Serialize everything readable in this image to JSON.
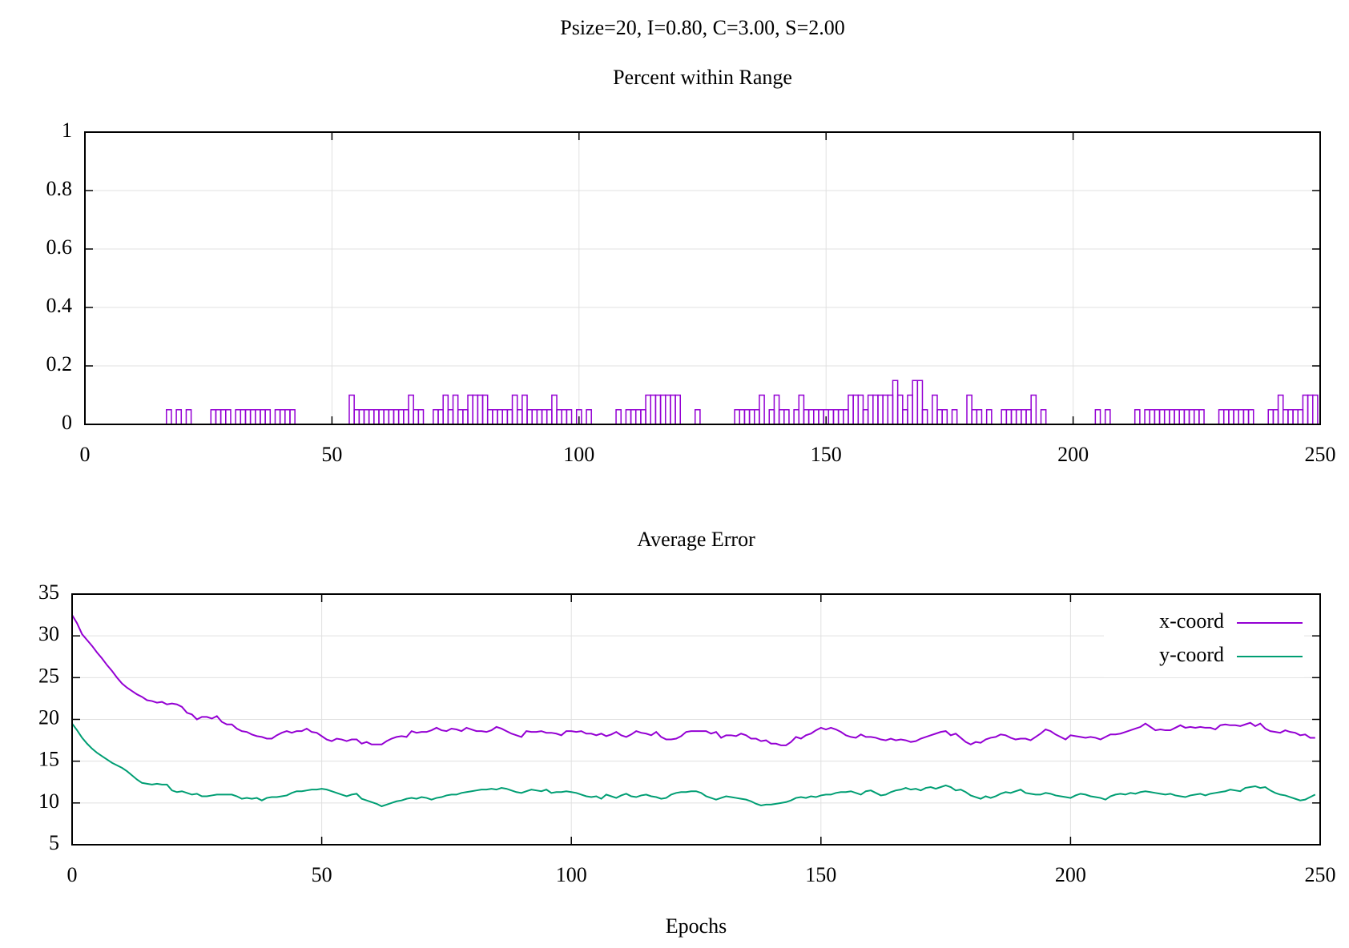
{
  "title": "Psize=20, I=0.80, C=3.00, S=2.00",
  "chart_data": [
    {
      "type": "bar",
      "title": "Percent within Range",
      "color": "#9400d3",
      "grid": true,
      "xlim": [
        0,
        250
      ],
      "xticks": [
        0,
        50,
        100,
        150,
        200,
        250
      ],
      "ylim": [
        0,
        1
      ],
      "yticks": [
        0,
        0.2,
        0.4,
        0.6,
        0.8,
        1
      ],
      "x": [
        0,
        1,
        2,
        3,
        4,
        5,
        6,
        7,
        8,
        9,
        10,
        11,
        12,
        13,
        14,
        15,
        16,
        17,
        18,
        19,
        20,
        21,
        22,
        23,
        24,
        25,
        26,
        27,
        28,
        29,
        30,
        31,
        32,
        33,
        34,
        35,
        36,
        37,
        38,
        39,
        40,
        41,
        42,
        43,
        44,
        45,
        46,
        47,
        48,
        49,
        50,
        51,
        52,
        53,
        54,
        55,
        56,
        57,
        58,
        59,
        60,
        61,
        62,
        63,
        64,
        65,
        66,
        67,
        68,
        69,
        70,
        71,
        72,
        73,
        74,
        75,
        76,
        77,
        78,
        79,
        80,
        81,
        82,
        83,
        84,
        85,
        86,
        87,
        88,
        89,
        90,
        91,
        92,
        93,
        94,
        95,
        96,
        97,
        98,
        99,
        100,
        101,
        102,
        103,
        104,
        105,
        106,
        107,
        108,
        109,
        110,
        111,
        112,
        113,
        114,
        115,
        116,
        117,
        118,
        119,
        120,
        121,
        122,
        123,
        124,
        125,
        126,
        127,
        128,
        129,
        130,
        131,
        132,
        133,
        134,
        135,
        136,
        137,
        138,
        139,
        140,
        141,
        142,
        143,
        144,
        145,
        146,
        147,
        148,
        149,
        150,
        151,
        152,
        153,
        154,
        155,
        156,
        157,
        158,
        159,
        160,
        161,
        162,
        163,
        164,
        165,
        166,
        167,
        168,
        169,
        170,
        171,
        172,
        173,
        174,
        175,
        176,
        177,
        178,
        179,
        180,
        181,
        182,
        183,
        184,
        185,
        186,
        187,
        188,
        189,
        190,
        191,
        192,
        193,
        194,
        195,
        196,
        197,
        198,
        199,
        200,
        201,
        202,
        203,
        204,
        205,
        206,
        207,
        208,
        209,
        210,
        211,
        212,
        213,
        214,
        215,
        216,
        217,
        218,
        219,
        220,
        221,
        222,
        223,
        224,
        225,
        226,
        227,
        228,
        229,
        230,
        231,
        232,
        233,
        234,
        235,
        236,
        237,
        238,
        239,
        240,
        241,
        242,
        243,
        244,
        245,
        246,
        247,
        248,
        249
      ],
      "values": [
        0,
        0,
        0,
        0,
        0,
        0,
        0,
        0,
        0,
        0,
        0,
        0,
        0,
        0,
        0,
        0,
        0,
        0.05,
        0,
        0.05,
        0,
        0.05,
        0,
        0,
        0,
        0,
        0.05,
        0.05,
        0.05,
        0.05,
        0,
        0.05,
        0.05,
        0.05,
        0.05,
        0.05,
        0.05,
        0.05,
        0,
        0.05,
        0.05,
        0.05,
        0.05,
        0,
        0,
        0,
        0,
        0,
        0,
        0,
        0,
        0,
        0,
        0,
        0.1,
        0.05,
        0.05,
        0.05,
        0.05,
        0.05,
        0.05,
        0.05,
        0.05,
        0.05,
        0.05,
        0.05,
        0.1,
        0.05,
        0.05,
        0,
        0,
        0.05,
        0.05,
        0.1,
        0.05,
        0.1,
        0.05,
        0.05,
        0.1,
        0.1,
        0.1,
        0.1,
        0.05,
        0.05,
        0.05,
        0.05,
        0.05,
        0.1,
        0.05,
        0.1,
        0.05,
        0.05,
        0.05,
        0.05,
        0.05,
        0.1,
        0.05,
        0.05,
        0.05,
        0,
        0.05,
        0,
        0.05,
        0,
        0,
        0,
        0,
        0,
        0.05,
        0,
        0.05,
        0.05,
        0.05,
        0.05,
        0.1,
        0.1,
        0.1,
        0.1,
        0.1,
        0.1,
        0.1,
        0,
        0,
        0,
        0.05,
        0,
        0,
        0,
        0,
        0,
        0,
        0,
        0.05,
        0.05,
        0.05,
        0.05,
        0.05,
        0.1,
        0,
        0.05,
        0.1,
        0.05,
        0.05,
        0,
        0.05,
        0.1,
        0.05,
        0.05,
        0.05,
        0.05,
        0.05,
        0.05,
        0.05,
        0.05,
        0.05,
        0.1,
        0.1,
        0.1,
        0.05,
        0.1,
        0.1,
        0.1,
        0.1,
        0.1,
        0.15,
        0.1,
        0.05,
        0.1,
        0.15,
        0.15,
        0.05,
        0,
        0.1,
        0.05,
        0.05,
        0,
        0.05,
        0,
        0,
        0.1,
        0.05,
        0.05,
        0,
        0.05,
        0,
        0,
        0.05,
        0.05,
        0.05,
        0.05,
        0.05,
        0.05,
        0.1,
        0,
        0.05,
        0,
        0,
        0,
        0,
        0,
        0,
        0,
        0,
        0,
        0,
        0.05,
        0,
        0.05,
        0,
        0,
        0,
        0,
        0,
        0.05,
        0,
        0.05,
        0.05,
        0.05,
        0.05,
        0.05,
        0.05,
        0.05,
        0.05,
        0.05,
        0.05,
        0.05,
        0.05,
        0,
        0,
        0,
        0.05,
        0.05,
        0.05,
        0.05,
        0.05,
        0.05,
        0.05,
        0,
        0,
        0,
        0.05,
        0.05,
        0.1,
        0.05,
        0.05,
        0.05,
        0.05,
        0.1,
        0.1,
        0.1
      ]
    },
    {
      "type": "line",
      "title": "Average Error",
      "xlabel": "Epochs",
      "grid": true,
      "legend": "top right",
      "xlim": [
        0,
        250
      ],
      "xticks": [
        0,
        50,
        100,
        150,
        200,
        250
      ],
      "ylim": [
        5,
        35
      ],
      "yticks": [
        5,
        10,
        15,
        20,
        25,
        30,
        35
      ],
      "x": [
        0,
        1,
        2,
        3,
        4,
        5,
        6,
        7,
        8,
        9,
        10,
        11,
        12,
        13,
        14,
        15,
        16,
        17,
        18,
        19,
        20,
        21,
        22,
        23,
        24,
        25,
        26,
        27,
        28,
        29,
        30,
        31,
        32,
        33,
        34,
        35,
        36,
        37,
        38,
        39,
        40,
        41,
        42,
        43,
        44,
        45,
        46,
        47,
        48,
        49,
        50,
        51,
        52,
        53,
        54,
        55,
        56,
        57,
        58,
        59,
        60,
        61,
        62,
        63,
        64,
        65,
        66,
        67,
        68,
        69,
        70,
        71,
        72,
        73,
        74,
        75,
        76,
        77,
        78,
        79,
        80,
        81,
        82,
        83,
        84,
        85,
        86,
        87,
        88,
        89,
        90,
        91,
        92,
        93,
        94,
        95,
        96,
        97,
        98,
        99,
        100,
        101,
        102,
        103,
        104,
        105,
        106,
        107,
        108,
        109,
        110,
        111,
        112,
        113,
        114,
        115,
        116,
        117,
        118,
        119,
        120,
        121,
        122,
        123,
        124,
        125,
        126,
        127,
        128,
        129,
        130,
        131,
        132,
        133,
        134,
        135,
        136,
        137,
        138,
        139,
        140,
        141,
        142,
        143,
        144,
        145,
        146,
        147,
        148,
        149,
        150,
        151,
        152,
        153,
        154,
        155,
        156,
        157,
        158,
        159,
        160,
        161,
        162,
        163,
        164,
        165,
        166,
        167,
        168,
        169,
        170,
        171,
        172,
        173,
        174,
        175,
        176,
        177,
        178,
        179,
        180,
        181,
        182,
        183,
        184,
        185,
        186,
        187,
        188,
        189,
        190,
        191,
        192,
        193,
        194,
        195,
        196,
        197,
        198,
        199,
        200,
        201,
        202,
        203,
        204,
        205,
        206,
        207,
        208,
        209,
        210,
        211,
        212,
        213,
        214,
        215,
        216,
        217,
        218,
        219,
        220,
        221,
        222,
        223,
        224,
        225,
        226,
        227,
        228,
        229,
        230,
        231,
        232,
        233,
        234,
        235,
        236,
        237,
        238,
        239,
        240,
        241,
        242,
        243,
        244,
        245,
        246,
        247,
        248,
        249
      ],
      "series": [
        {
          "name": "x-coord",
          "color": "#9400d3",
          "values": [
            32.5,
            31.5,
            30.2,
            29.5,
            28.8,
            28,
            27.3,
            26.5,
            25.8,
            25,
            24.3,
            23.8,
            23.4,
            23,
            22.7,
            22.3,
            22.2,
            22,
            22.1,
            21.8,
            21.9,
            21.8,
            21.5,
            20.8,
            20.6,
            20,
            20.3,
            20.3,
            20.1,
            20.4,
            19.7,
            19.4,
            19.4,
            18.9,
            18.6,
            18.5,
            18.2,
            18,
            17.9,
            17.7,
            17.7,
            18.1,
            18.4,
            18.6,
            18.4,
            18.6,
            18.6,
            18.9,
            18.5,
            18.4,
            18,
            17.6,
            17.4,
            17.7,
            17.6,
            17.4,
            17.6,
            17.6,
            17.1,
            17.3,
            17,
            17,
            17,
            17.4,
            17.7,
            17.9,
            18,
            17.9,
            18.6,
            18.4,
            18.5,
            18.5,
            18.7,
            19,
            18.7,
            18.6,
            18.9,
            18.8,
            18.6,
            19,
            18.8,
            18.6,
            18.6,
            18.5,
            18.7,
            19.1,
            18.9,
            18.6,
            18.3,
            18.1,
            17.9,
            18.6,
            18.5,
            18.5,
            18.6,
            18.4,
            18.4,
            18.3,
            18.1,
            18.6,
            18.6,
            18.5,
            18.6,
            18.3,
            18.3,
            18.1,
            18.3,
            18,
            18.2,
            18.5,
            18.1,
            17.9,
            18.2,
            18.6,
            18.4,
            18.3,
            18.1,
            18.5,
            17.9,
            17.6,
            17.6,
            17.7,
            18,
            18.5,
            18.6,
            18.6,
            18.6,
            18.6,
            18.3,
            18.5,
            17.8,
            18.1,
            18.1,
            18,
            18.3,
            18.1,
            17.7,
            17.7,
            17.4,
            17.5,
            17.1,
            17.1,
            16.9,
            16.9,
            17.3,
            17.9,
            17.7,
            18.1,
            18.3,
            18.7,
            19,
            18.8,
            19,
            18.8,
            18.5,
            18.1,
            17.9,
            17.8,
            18.2,
            17.9,
            17.9,
            17.8,
            17.6,
            17.5,
            17.7,
            17.5,
            17.6,
            17.5,
            17.3,
            17.4,
            17.7,
            17.9,
            18.1,
            18.3,
            18.5,
            18.6,
            18.1,
            18.3,
            17.8,
            17.3,
            17,
            17.3,
            17.2,
            17.6,
            17.8,
            17.9,
            18.2,
            18.1,
            17.8,
            17.6,
            17.7,
            17.7,
            17.5,
            17.9,
            18.3,
            18.8,
            18.6,
            18.2,
            17.9,
            17.6,
            18.1,
            18,
            17.9,
            17.8,
            17.9,
            17.8,
            17.6,
            17.9,
            18.2,
            18.2,
            18.3,
            18.5,
            18.7,
            18.9,
            19.1,
            19.5,
            19.1,
            18.7,
            18.8,
            18.7,
            18.7,
            19,
            19.3,
            19,
            19.1,
            19,
            19.1,
            19,
            19,
            18.8,
            19.3,
            19.4,
            19.3,
            19.3,
            19.2,
            19.4,
            19.6,
            19.2,
            19.5,
            18.9,
            18.6,
            18.5,
            18.4,
            18.7,
            18.5,
            18.4,
            18.1,
            18.2,
            17.8,
            17.8
          ]
        },
        {
          "name": "y-coord",
          "color": "#009e73",
          "values": [
            19.5,
            18.7,
            17.8,
            17.1,
            16.5,
            16,
            15.6,
            15.2,
            14.8,
            14.5,
            14.2,
            13.8,
            13.3,
            12.8,
            12.4,
            12.3,
            12.2,
            12.3,
            12.2,
            12.2,
            11.5,
            11.3,
            11.4,
            11.2,
            11,
            11.1,
            10.8,
            10.8,
            10.9,
            11,
            11,
            11,
            11,
            10.8,
            10.5,
            10.6,
            10.5,
            10.6,
            10.3,
            10.6,
            10.7,
            10.7,
            10.8,
            10.9,
            11.2,
            11.4,
            11.4,
            11.5,
            11.6,
            11.6,
            11.7,
            11.6,
            11.4,
            11.2,
            11,
            10.8,
            11,
            11.1,
            10.5,
            10.3,
            10.1,
            9.9,
            9.6,
            9.8,
            10,
            10.2,
            10.3,
            10.5,
            10.6,
            10.5,
            10.7,
            10.6,
            10.4,
            10.6,
            10.7,
            10.9,
            11,
            11,
            11.2,
            11.3,
            11.4,
            11.5,
            11.6,
            11.6,
            11.7,
            11.6,
            11.8,
            11.7,
            11.5,
            11.3,
            11.2,
            11.4,
            11.6,
            11.5,
            11.4,
            11.6,
            11.2,
            11.3,
            11.3,
            11.4,
            11.3,
            11.2,
            11,
            10.8,
            10.7,
            10.8,
            10.5,
            11,
            10.8,
            10.6,
            10.9,
            11.1,
            10.8,
            10.7,
            10.9,
            11,
            10.8,
            10.7,
            10.5,
            10.6,
            11,
            11.2,
            11.3,
            11.3,
            11.4,
            11.4,
            11.2,
            10.8,
            10.6,
            10.4,
            10.6,
            10.8,
            10.7,
            10.6,
            10.5,
            10.4,
            10.2,
            9.9,
            9.7,
            9.8,
            9.8,
            9.9,
            10,
            10.1,
            10.3,
            10.6,
            10.7,
            10.6,
            10.8,
            10.7,
            10.9,
            11,
            11,
            11.2,
            11.3,
            11.3,
            11.4,
            11.2,
            11,
            11.4,
            11.5,
            11.2,
            10.9,
            11,
            11.3,
            11.5,
            11.6,
            11.8,
            11.6,
            11.7,
            11.5,
            11.8,
            11.9,
            11.7,
            11.9,
            12.1,
            11.9,
            11.5,
            11.6,
            11.3,
            10.9,
            10.7,
            10.5,
            10.8,
            10.6,
            10.8,
            11.1,
            11.3,
            11.2,
            11.4,
            11.6,
            11.2,
            11.1,
            11,
            11,
            11.2,
            11.1,
            10.9,
            10.8,
            10.7,
            10.6,
            10.9,
            11.1,
            11,
            10.8,
            10.7,
            10.6,
            10.4,
            10.8,
            11,
            11.1,
            11,
            11.2,
            11.1,
            11.3,
            11.4,
            11.3,
            11.2,
            11.1,
            11,
            11.1,
            10.9,
            10.8,
            10.7,
            10.9,
            11,
            11.1,
            10.9,
            11.1,
            11.2,
            11.3,
            11.4,
            11.6,
            11.5,
            11.4,
            11.8,
            11.9,
            12,
            11.8,
            11.9,
            11.5,
            11.2,
            11,
            10.9,
            10.7,
            10.5,
            10.3,
            10.4,
            10.7,
            11
          ]
        }
      ]
    }
  ]
}
